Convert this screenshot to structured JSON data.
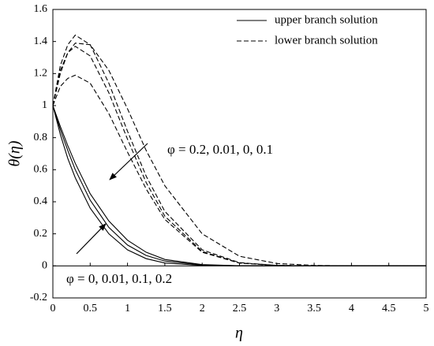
{
  "chart_data": {
    "type": "line",
    "xlabel": "η",
    "ylabel": "θ(η)",
    "x": [
      0,
      0.1,
      0.2,
      0.3,
      0.5,
      0.75,
      1,
      1.25,
      1.5,
      2,
      2.5,
      3,
      3.5,
      4,
      5
    ],
    "series": [
      {
        "name": "upper branch solution",
        "color": "#000000",
        "dash": "solid",
        "curves": [
          [
            1,
            0.82,
            0.67,
            0.55,
            0.36,
            0.2,
            0.1,
            0.045,
            0.018,
            0.003,
            0,
            0,
            0,
            0,
            0
          ],
          [
            1,
            0.85,
            0.72,
            0.6,
            0.41,
            0.24,
            0.13,
            0.065,
            0.03,
            0.005,
            0.001,
            0,
            0,
            0,
            0
          ],
          [
            1,
            0.87,
            0.75,
            0.64,
            0.45,
            0.28,
            0.16,
            0.085,
            0.04,
            0.008,
            0.001,
            0,
            0,
            0,
            0
          ]
        ]
      },
      {
        "name": "lower branch solution",
        "color": "#000000",
        "dash": "dashed",
        "curves": [
          [
            1,
            1.2,
            1.33,
            1.39,
            1.38,
            1.22,
            0.98,
            0.72,
            0.5,
            0.2,
            0.06,
            0.015,
            0.003,
            0,
            0
          ],
          [
            1,
            1.25,
            1.38,
            1.44,
            1.38,
            1.14,
            0.84,
            0.56,
            0.34,
            0.1,
            0.02,
            0.003,
            0,
            0,
            0
          ],
          [
            1,
            1.22,
            1.33,
            1.37,
            1.31,
            1.08,
            0.79,
            0.52,
            0.31,
            0.09,
            0.018,
            0.003,
            0,
            0,
            0
          ],
          [
            1,
            1.12,
            1.17,
            1.19,
            1.14,
            0.95,
            0.71,
            0.48,
            0.29,
            0.085,
            0.017,
            0.003,
            0,
            0,
            0
          ]
        ]
      }
    ],
    "annotations": [
      "φ = 0.2, 0.01, 0, 0.1",
      "φ = 0, 0.01, 0.1, 0.2"
    ],
    "xlim": [
      0,
      5
    ],
    "xticks": [
      0,
      0.5,
      1,
      1.5,
      2,
      2.5,
      3,
      3.5,
      4,
      4.5,
      5
    ],
    "ylim": [
      -0.2,
      1.6
    ],
    "yticks": [
      -0.2,
      0,
      0.2,
      0.4,
      0.6,
      0.8,
      1,
      1.2,
      1.4,
      1.6
    ],
    "legend": "upper-right"
  }
}
